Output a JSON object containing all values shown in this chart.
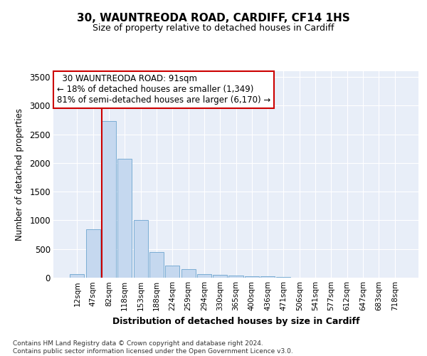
{
  "title1": "30, WAUNTREODA ROAD, CARDIFF, CF14 1HS",
  "title2": "Size of property relative to detached houses in Cardiff",
  "xlabel": "Distribution of detached houses by size in Cardiff",
  "ylabel": "Number of detached properties",
  "categories": [
    "12sqm",
    "47sqm",
    "82sqm",
    "118sqm",
    "153sqm",
    "188sqm",
    "224sqm",
    "259sqm",
    "294sqm",
    "330sqm",
    "365sqm",
    "400sqm",
    "436sqm",
    "471sqm",
    "506sqm",
    "541sqm",
    "577sqm",
    "612sqm",
    "647sqm",
    "683sqm",
    "718sqm"
  ],
  "values": [
    60,
    850,
    2730,
    2070,
    1010,
    450,
    210,
    150,
    65,
    55,
    40,
    30,
    25,
    15,
    5,
    4,
    3,
    2,
    2,
    1,
    0
  ],
  "bar_color": "#c5d8ef",
  "bar_edge_color": "#7badd4",
  "vline_x_index": 2,
  "vline_color": "#cc0000",
  "annotation_text": "  30 WAUNTREODA ROAD: 91sqm  \n← 18% of detached houses are smaller (1,349)\n81% of semi-detached houses are larger (6,170) →",
  "annotation_box_color": "#ffffff",
  "annotation_box_edge_color": "#cc0000",
  "ylim": [
    0,
    3600
  ],
  "yticks": [
    0,
    500,
    1000,
    1500,
    2000,
    2500,
    3000,
    3500
  ],
  "footer_text": "Contains HM Land Registry data © Crown copyright and database right 2024.\nContains public sector information licensed under the Open Government Licence v3.0.",
  "bg_color": "#ffffff",
  "plot_bg_color": "#e8eef8",
  "grid_color": "#ffffff"
}
